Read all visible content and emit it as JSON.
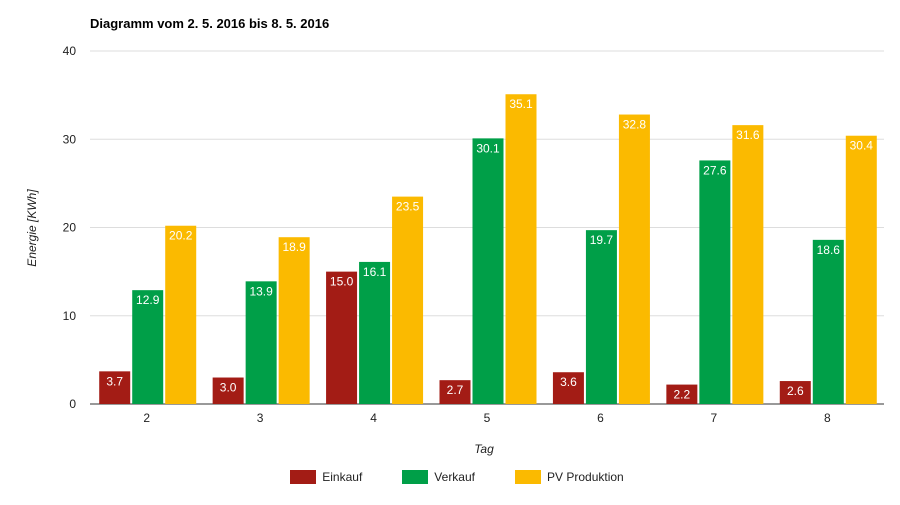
{
  "chart_data": {
    "type": "bar",
    "title": "Diagramm vom 2. 5. 2016 bis 8. 5. 2016",
    "xlabel": "Tag",
    "ylabel": "Energie [KWh]",
    "ylim": [
      0,
      40
    ],
    "yticks": [
      "0",
      "10",
      "20",
      "30",
      "40"
    ],
    "grid": true,
    "legend_position": "bottom",
    "categories": [
      "2",
      "3",
      "4",
      "5",
      "6",
      "7",
      "8"
    ],
    "series": [
      {
        "name": "Einkauf",
        "color": "#A31C15",
        "values": [
          3.7,
          3.0,
          15.0,
          2.7,
          3.6,
          2.2,
          2.6
        ],
        "labels": [
          "3.7",
          "3.0",
          "15.0",
          "2.7",
          "3.6",
          "2.2",
          "2.6"
        ]
      },
      {
        "name": "Verkauf",
        "color": "#009F48",
        "values": [
          12.9,
          13.9,
          16.1,
          30.1,
          19.7,
          27.6,
          18.6
        ],
        "labels": [
          "12.9",
          "13.9",
          "16.1",
          "30.1",
          "19.7",
          "27.6",
          "18.6"
        ]
      },
      {
        "name": "PV Produktion",
        "color": "#FBBA00",
        "values": [
          20.2,
          18.9,
          23.5,
          35.1,
          32.8,
          31.6,
          30.4
        ],
        "labels": [
          "20.2",
          "18.9",
          "23.5",
          "35.1",
          "32.8",
          "31.6",
          "30.4"
        ]
      }
    ]
  }
}
